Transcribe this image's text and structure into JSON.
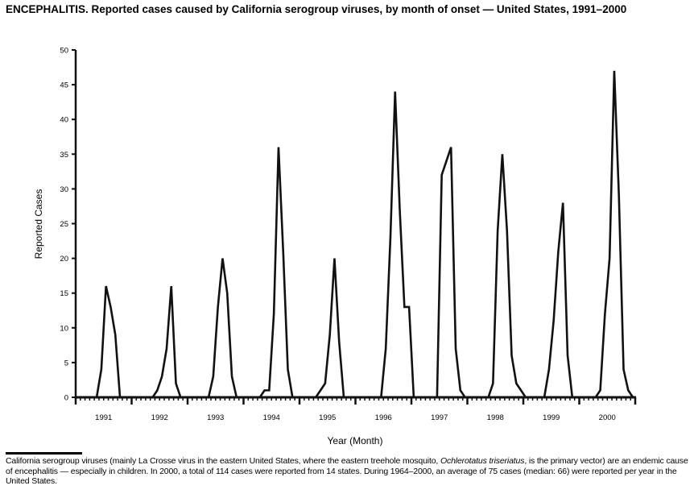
{
  "title": "ENCEPHALITIS. Reported cases caused by California serogroup viruses, by month of onset — United States, 1991–2000",
  "footnote": {
    "part1": "California serogroup viruses (mainly La Crosse virus in the eastern United States, where the eastern treehole mosquito, ",
    "italic": "Ochlerotatus triseriatus",
    "part2": ", is the primary vector) are an endemic cause of encephalitis — especially in children. In 2000, a total of 114 cases were reported from 14 states. During 1964–2000, an average of 75 cases (median: 66) were reported per year in the United States."
  },
  "chart_data": {
    "type": "line",
    "title": "ENCEPHALITIS. Reported cases caused by California serogroup viruses, by month of onset — United States, 1991–2000",
    "xlabel": "Year (Month)",
    "ylabel": "Reported Cases",
    "ylim": [
      0,
      50
    ],
    "yticks": [
      "0",
      "5",
      "10",
      "15",
      "20",
      "25",
      "30",
      "35",
      "40",
      "45",
      "50"
    ],
    "xticks": [
      "1991",
      "1992",
      "1993",
      "1994",
      "1995",
      "1996",
      "1997",
      "1998",
      "1999",
      "2000"
    ],
    "grid": false,
    "line_color": "#111111",
    "series": [
      {
        "year": "1991",
        "monthly": [
          0,
          0,
          0,
          0,
          0,
          4,
          16,
          13,
          9,
          0,
          0,
          0
        ]
      },
      {
        "year": "1992",
        "monthly": [
          0,
          0,
          0,
          0,
          0,
          1,
          3,
          7,
          16,
          2,
          0,
          0
        ]
      },
      {
        "year": "1993",
        "monthly": [
          0,
          0,
          0,
          0,
          0,
          3,
          13,
          20,
          15,
          3,
          0,
          0
        ]
      },
      {
        "year": "1994",
        "monthly": [
          0,
          0,
          0,
          0,
          1,
          1,
          12,
          36,
          21,
          4,
          0,
          0
        ]
      },
      {
        "year": "1995",
        "monthly": [
          0,
          0,
          0,
          0,
          1,
          2,
          9,
          20,
          8,
          0,
          0,
          0
        ]
      },
      {
        "year": "1996",
        "monthly": [
          0,
          0,
          0,
          0,
          0,
          0,
          7,
          23,
          44,
          27,
          13,
          13
        ]
      },
      {
        "year": "1997",
        "monthly": [
          0,
          0,
          0,
          0,
          0,
          0,
          32,
          34,
          36,
          7,
          1,
          0
        ]
      },
      {
        "year": "1998",
        "monthly": [
          0,
          0,
          0,
          0,
          0,
          2,
          24,
          35,
          24,
          6,
          2,
          1
        ]
      },
      {
        "year": "1999",
        "monthly": [
          0,
          0,
          0,
          0,
          0,
          4,
          11,
          21,
          28,
          6,
          0,
          0
        ]
      },
      {
        "year": "2000",
        "monthly": [
          0,
          0,
          0,
          0,
          1,
          12,
          20,
          47,
          29,
          4,
          1,
          0
        ]
      }
    ]
  }
}
